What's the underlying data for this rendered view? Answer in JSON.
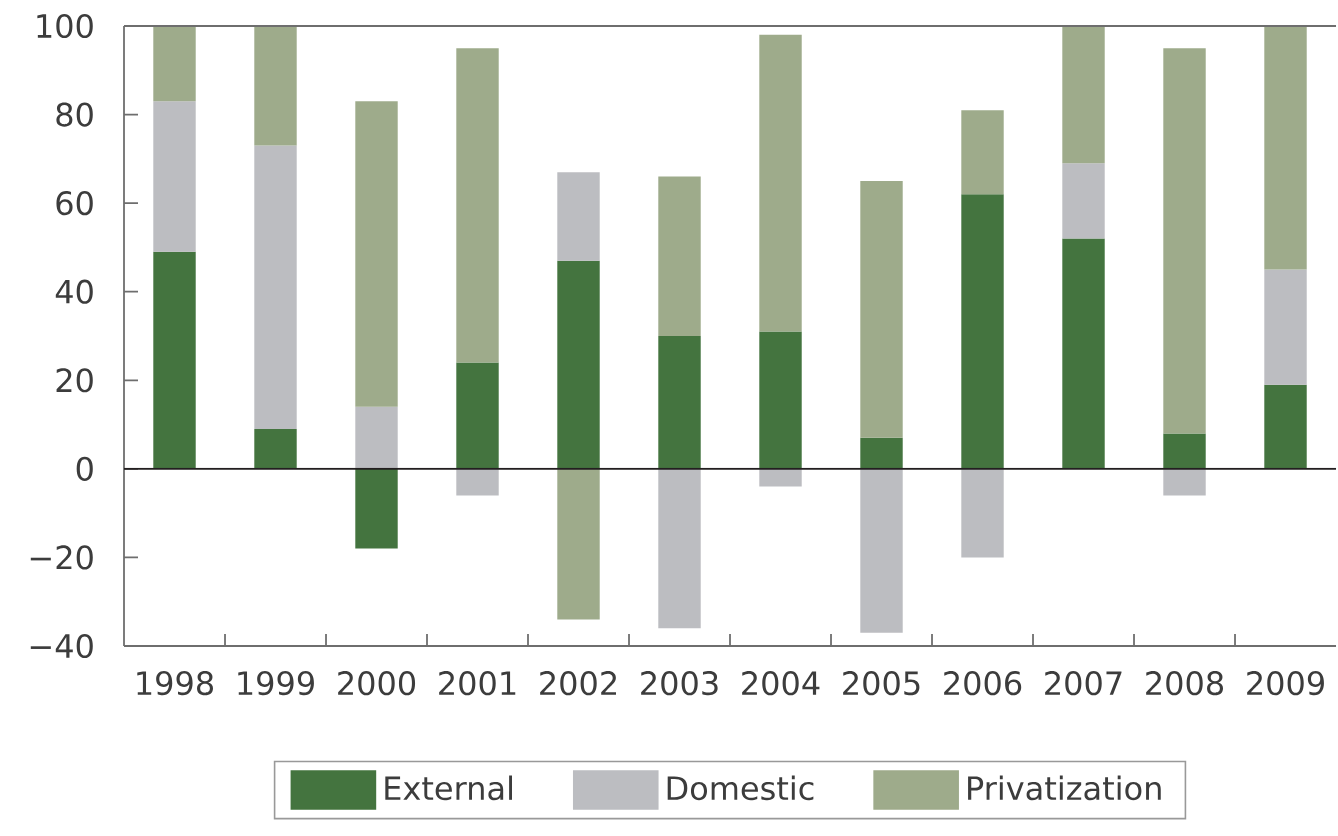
{
  "chart_data": {
    "type": "bar",
    "stacked": true,
    "categories": [
      "1998",
      "1999",
      "2000",
      "2001",
      "2002",
      "2003",
      "2004",
      "2005",
      "2006",
      "2007",
      "2008",
      "2009"
    ],
    "series": [
      {
        "name": "External",
        "color": "#44743f",
        "values": [
          49,
          9,
          -18,
          24,
          47,
          30,
          31,
          7,
          62,
          52,
          8,
          19
        ]
      },
      {
        "name": "Domestic",
        "color": "#bcbdc1",
        "values": [
          34,
          64,
          14,
          -6,
          20,
          -36,
          -4,
          -37,
          -20,
          17,
          -6,
          26
        ]
      },
      {
        "name": "Privatization",
        "color": "#9eab8b",
        "values": [
          17,
          27,
          69,
          71,
          -34,
          36,
          67,
          58,
          19,
          31,
          87,
          55
        ]
      }
    ],
    "ylim": [
      -40,
      100
    ],
    "yticks": [
      {
        "value": -40,
        "label": "−40"
      },
      {
        "value": -20,
        "label": "−20"
      },
      0,
      20,
      40,
      60,
      80,
      100
    ],
    "ref_lines": [
      {
        "axis": "y",
        "value": 0,
        "color": "#231f20"
      }
    ],
    "legend": "bottom"
  }
}
